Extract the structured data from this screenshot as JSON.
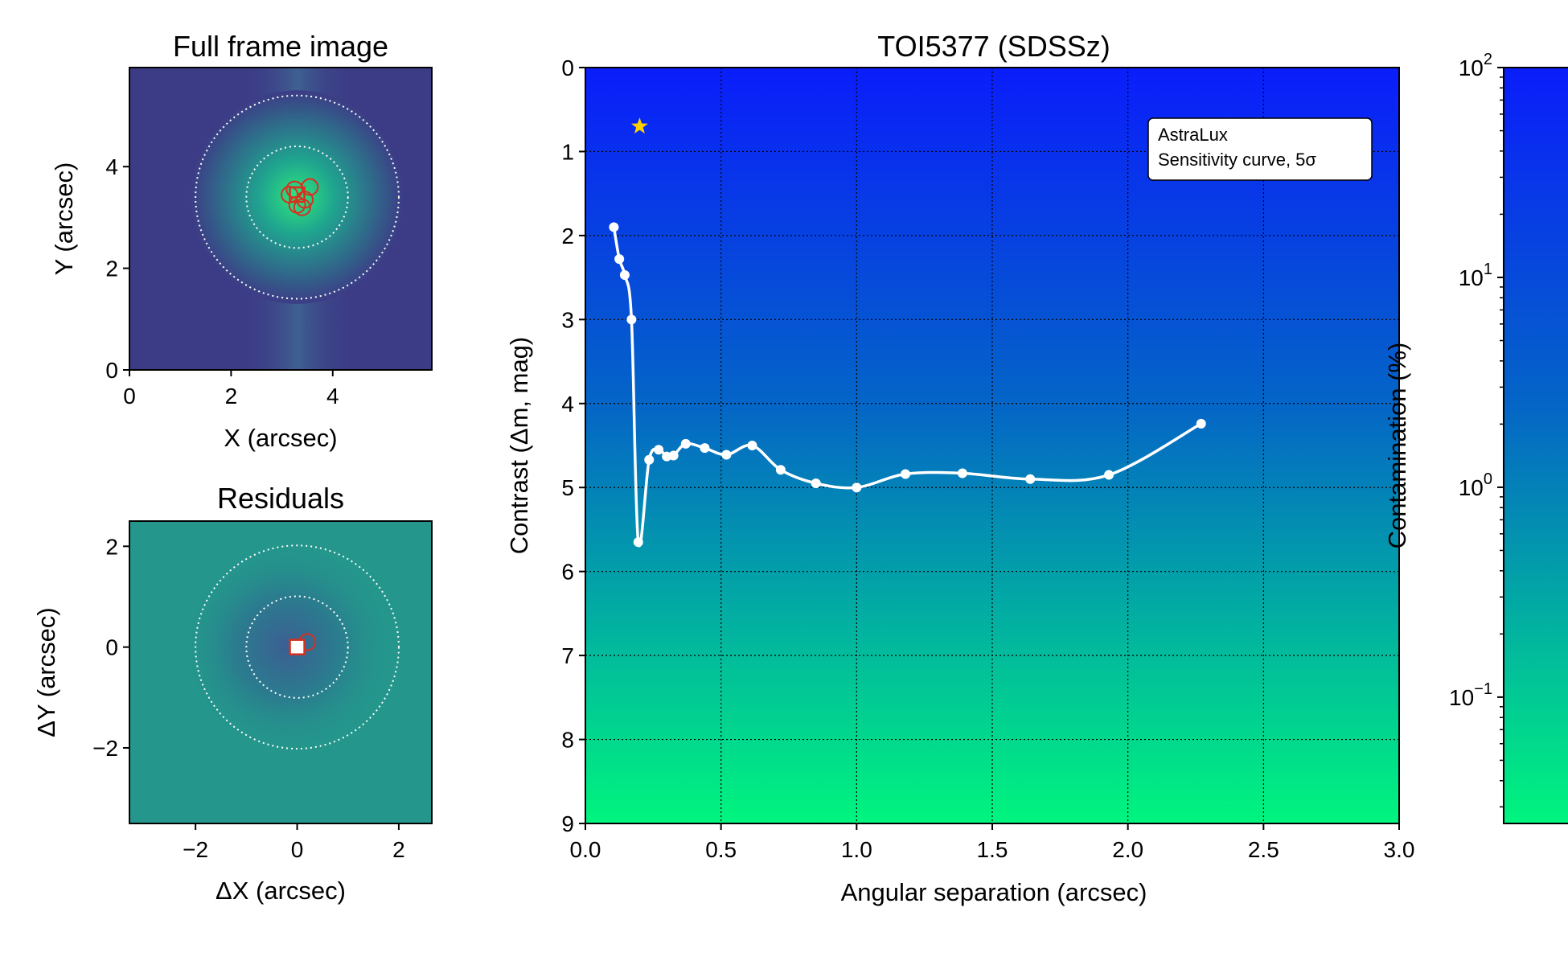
{
  "colors": {
    "frame_center": "#2ee77a",
    "frame_mid": "#1fa58f",
    "frame_edge": "#3c3c86",
    "residual_bg": "#24968c",
    "marker": "#d7301f",
    "contrast_top": "#0a1dfb",
    "contrast_bottom": "#00f57e",
    "curve": "#ffffff",
    "star": "#ffd000"
  },
  "chart_data": [
    {
      "type": "heatmap",
      "title": "Full frame image",
      "xlabel": "X (arcsec)",
      "ylabel": "Y (arcsec)",
      "xlim": [
        0,
        5.95
      ],
      "ylim": [
        0,
        5.95
      ],
      "x_ticks": [
        0,
        2,
        4
      ],
      "y_ticks": [
        0,
        2,
        4
      ],
      "x_tick_labels": [
        "0",
        "2",
        "4"
      ],
      "y_tick_labels": [
        "0",
        "2",
        "4"
      ],
      "colormap": "viridis",
      "center": [
        3.3,
        3.4
      ],
      "rings_radius": [
        1.0,
        2.0
      ],
      "markers": {
        "circles": [
          [
            3.55,
            3.6
          ],
          [
            3.3,
            3.25
          ],
          [
            3.15,
            3.45
          ],
          [
            3.45,
            3.35
          ],
          [
            3.25,
            3.55
          ],
          [
            3.4,
            3.2
          ]
        ],
        "square": [
          3.3,
          3.45
        ]
      }
    },
    {
      "type": "heatmap",
      "title": "Residuals",
      "xlabel": "ΔX (arcsec)",
      "ylabel": "ΔY (arcsec)",
      "xlim": [
        -3.3,
        2.65
      ],
      "ylim": [
        -3.5,
        2.5
      ],
      "x_ticks": [
        -2,
        0,
        2
      ],
      "y_ticks": [
        -2,
        0,
        2
      ],
      "x_tick_labels": [
        "−2",
        "0",
        "2"
      ],
      "y_tick_labels": [
        "−2",
        "0",
        "2"
      ],
      "colormap": "viridis",
      "center": [
        0,
        0
      ],
      "rings_radius": [
        1.0,
        2.0
      ],
      "markers": {
        "circles": [
          [
            0.2,
            0.1
          ]
        ],
        "square": [
          0,
          0
        ]
      }
    },
    {
      "type": "line",
      "title": "TOI5377 (SDSSz)",
      "xlabel": "Angular separation (arcsec)",
      "ylabel": "Contrast (Δm, mag)",
      "xlim": [
        0,
        3.0
      ],
      "ylim": [
        9,
        0
      ],
      "x_ticks": [
        0,
        0.5,
        1.0,
        1.5,
        2.0,
        2.5,
        3.0
      ],
      "y_ticks": [
        0,
        1,
        2,
        3,
        4,
        5,
        6,
        7,
        8,
        9
      ],
      "x_tick_labels": [
        "0.0",
        "0.5",
        "1.0",
        "1.5",
        "2.0",
        "2.5",
        "3.0"
      ],
      "y_tick_labels": [
        "0",
        "1",
        "2",
        "3",
        "4",
        "5",
        "6",
        "7",
        "8",
        "9"
      ],
      "grid": true,
      "legend": {
        "lines": [
          "AstraLux",
          "Sensitivity curve, 5σ"
        ],
        "placement": "top-right"
      },
      "series": [
        {
          "x": [
            0.105,
            0.125,
            0.145,
            0.17,
            0.195,
            0.235,
            0.27,
            0.3,
            0.325,
            0.37,
            0.44,
            0.52,
            0.615,
            0.72,
            0.85,
            1.0,
            1.18,
            1.39,
            1.64,
            1.93,
            2.27
          ],
          "y": [
            1.9,
            2.28,
            2.47,
            3.0,
            5.65,
            4.67,
            4.55,
            4.63,
            4.62,
            4.48,
            4.53,
            4.61,
            4.5,
            4.79,
            4.95,
            5.0,
            4.84,
            4.83,
            4.9,
            4.85,
            4.24
          ]
        }
      ],
      "star": {
        "x": 0.2,
        "y": 0.7
      }
    },
    {
      "type": "colorbar",
      "ylabel": "Contamination (%)",
      "scale": "log",
      "range": [
        0.025,
        100
      ],
      "tick_values": [
        100,
        10,
        1,
        0.1
      ],
      "tick_bases": [
        "10",
        "10",
        "10",
        "10"
      ],
      "tick_exponents": [
        "2",
        "1",
        "0",
        "−1"
      ]
    }
  ]
}
